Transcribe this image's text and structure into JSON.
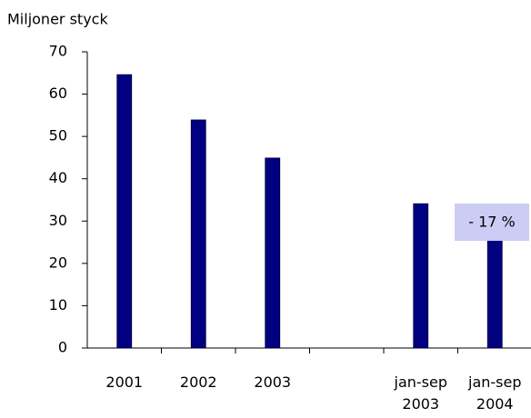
{
  "chart_data": {
    "type": "bar",
    "y_label": "Miljoner styck",
    "categories": [
      "2001",
      "2002",
      "2003",
      null,
      "jan-sep\n2003",
      "jan-sep\n2004"
    ],
    "values": [
      64.6,
      53.9,
      44.9,
      null,
      34.1,
      28.1
    ],
    "color": "#000080",
    "ylim": [
      0,
      70
    ],
    "yticks": [
      0,
      10,
      20,
      30,
      40,
      50,
      60,
      70
    ],
    "annotation": "- 17 %"
  }
}
